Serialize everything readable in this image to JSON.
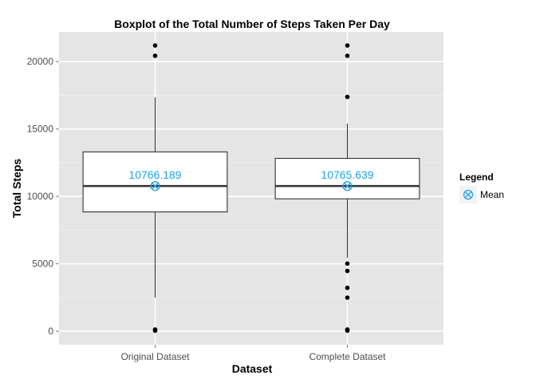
{
  "chart_data": {
    "type": "box",
    "title": "Boxplot of the Total Number of Steps Taken Per Day",
    "xlabel": "Dataset",
    "ylabel": "Total Steps",
    "ylim": [
      -1000,
      22200
    ],
    "yticks": [
      0,
      5000,
      10000,
      15000,
      20000
    ],
    "yticklabels": [
      "0",
      "5000",
      "10000",
      "15000",
      "20000"
    ],
    "categories": [
      "Original Dataset",
      "Complete Dataset"
    ],
    "boxes": [
      {
        "category": "Original Dataset",
        "whisker_low": 2500,
        "q1": 8850,
        "median": 10770,
        "q3": 13300,
        "whisker_high": 17350,
        "outliers": [
          41,
          126,
          20427,
          21194
        ],
        "mean": 10766.189,
        "mean_label": "10766.189"
      },
      {
        "category": "Complete Dataset",
        "whisker_low": 5450,
        "q1": 9820,
        "median": 10770,
        "q3": 12820,
        "whisker_high": 15400,
        "outliers": [
          41,
          126,
          2492,
          3219,
          4472,
          5018,
          17382,
          20427,
          21194
        ],
        "mean": 10765.639,
        "mean_label": "10765.639"
      }
    ],
    "legend": {
      "title": "Legend",
      "position": "right",
      "items": [
        {
          "label": "Mean",
          "color": "#1fa2e3"
        }
      ]
    },
    "colors": {
      "panel_bg": "#e5e5e5",
      "grid_major": "#ffffff",
      "grid_minor": "#f2f2f2",
      "box_fill": "#ffffff",
      "box_stroke": "#333333",
      "outlier": "#000000",
      "mean": "#1fa2e3"
    },
    "grid": true
  }
}
